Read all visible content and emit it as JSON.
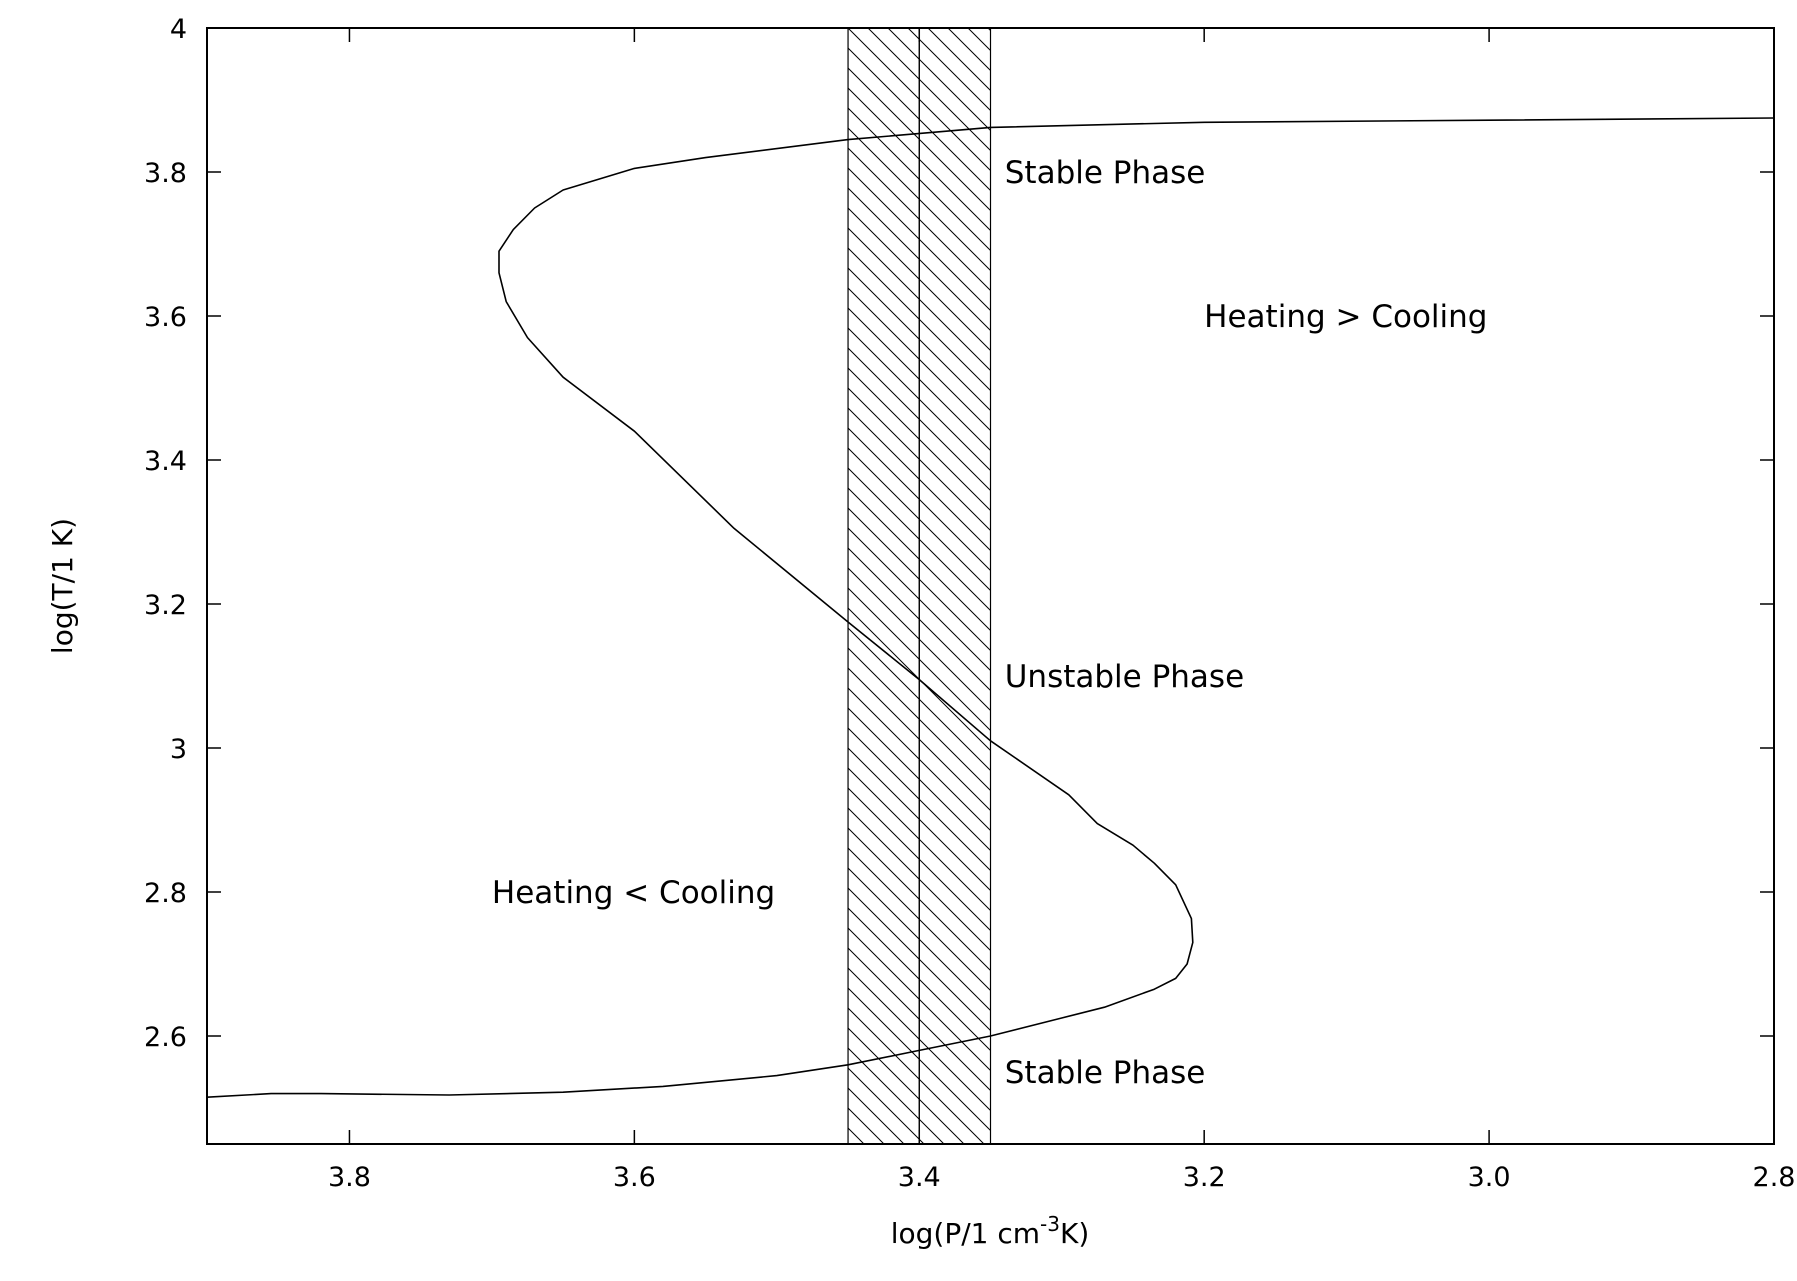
{
  "chart_data": {
    "type": "line",
    "title": "",
    "xlabel": {
      "base": "log(P/1 cm",
      "sup": "-3",
      "tail": "K)"
    },
    "ylabel": "log(T/1 K)",
    "xlim": [
      3.9,
      2.8
    ],
    "ylim": [
      2.45,
      4.0
    ],
    "x_reversed": true,
    "x_ticks": [
      "3.8",
      "3.6",
      "3.4",
      "3.2",
      "3.0",
      "2.8"
    ],
    "y_ticks": [
      "4",
      "3.8",
      "3.6",
      "3.4",
      "3.2",
      "3",
      "2.8",
      "2.6"
    ],
    "grid": false,
    "legend": "none",
    "line_color": "#000000",
    "series": [
      {
        "points": [
          [
            3.9,
            2.515
          ],
          [
            3.855,
            2.52
          ],
          [
            3.82,
            2.52
          ],
          [
            3.73,
            2.518
          ],
          [
            3.65,
            2.522
          ],
          [
            3.58,
            2.53
          ],
          [
            3.5,
            2.545
          ],
          [
            3.45,
            2.56
          ],
          [
            3.4,
            2.58
          ],
          [
            3.35,
            2.6
          ],
          [
            3.3,
            2.625
          ],
          [
            3.27,
            2.64
          ],
          [
            3.235,
            2.665
          ],
          [
            3.22,
            2.68
          ],
          [
            3.212,
            2.7
          ],
          [
            3.208,
            2.73
          ],
          [
            3.209,
            2.763
          ],
          [
            3.22,
            2.81
          ],
          [
            3.235,
            2.84
          ],
          [
            3.25,
            2.865
          ],
          [
            3.275,
            2.895
          ],
          [
            3.295,
            2.935
          ],
          [
            3.35,
            3.01
          ],
          [
            3.4,
            3.095
          ],
          [
            3.45,
            3.175
          ],
          [
            3.53,
            3.305
          ],
          [
            3.6,
            3.44
          ],
          [
            3.65,
            3.515
          ],
          [
            3.675,
            3.57
          ],
          [
            3.69,
            3.62
          ],
          [
            3.695,
            3.66
          ],
          [
            3.695,
            3.69
          ],
          [
            3.685,
            3.72
          ],
          [
            3.67,
            3.75
          ],
          [
            3.65,
            3.775
          ],
          [
            3.6,
            3.805
          ],
          [
            3.55,
            3.82
          ],
          [
            3.45,
            3.845
          ],
          [
            3.35,
            3.862
          ],
          [
            3.2,
            3.869
          ],
          [
            3.0,
            3.872
          ],
          [
            2.8,
            3.875
          ]
        ]
      }
    ],
    "hatched_bands": [
      {
        "x_from": 3.45,
        "x_to": 3.4
      },
      {
        "x_from": 3.4,
        "x_to": 3.35
      }
    ],
    "annotations": [
      {
        "text": "Stable Phase",
        "x": 3.34,
        "y": 3.8
      },
      {
        "text": "Heating > Cooling",
        "x": 3.2,
        "y": 3.6
      },
      {
        "text": "Unstable Phase",
        "x": 3.34,
        "y": 3.1
      },
      {
        "text": "Heating < Cooling",
        "x": 3.7,
        "y": 2.8
      },
      {
        "text": "Stable Phase",
        "x": 3.34,
        "y": 2.55
      }
    ]
  }
}
